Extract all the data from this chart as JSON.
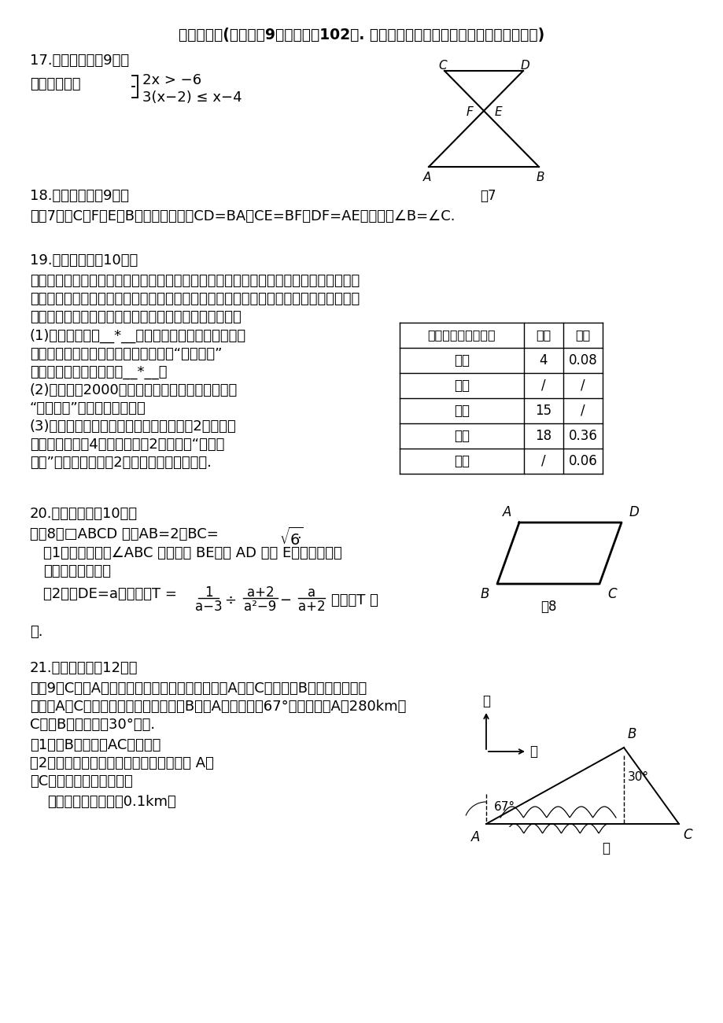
{
  "bg_color": "#ffffff",
  "title": "三、解答题(本大题兲9小题，满分102分. 解答应写出文字说明、证明过程或演算步骤)",
  "q17_title": "17.（本小题满劙9分）",
  "q17_text": "解不等式组：",
  "q18_title": "18.（本小题满劙9分）",
  "q18_text": "如图7，点C、F、E、B在一条直线上，CD=BA，CE=BF，DF=AE，求证：∠B=∠C.",
  "q19_title": "19.（本小题满刉10分）",
  "q19_text1": "某校为了解学生对新闻、体育、动画、娱乐、戲曲五类电视节目的喜爱情况，随机选取该",
  "q19_text2": "校部分学生进行调查，要求每名学生从中只选一类最喜爱的电视节目，以下是根据调查结",
  "q19_text3": "果绘制的不完整统计表，根据表中信息，回答下列问题：",
  "q19_sub1": "(1)本次共调查了__*__名学生，若将各类电视节目喜",
  "q19_sub1b": "爱的人数所占比例绘制成扇形统计图则“喜爱动画”",
  "q19_sub1c": "对应扇形的圆心角度数是__*__；",
  "q19_sub2": "(2)该校共有2000名学生，根据调查结果估计该校",
  "q19_sub2b": "“喜爱体育”节目的学生人数；",
  "q19_sub3": "(3)在此次问卷调查中，甲、乙两班分别有2人喜爱新",
  "q19_sub3b": "闻节目，若从这4人中随机抖取2人去参加“新闻小",
  "q19_sub3c": "记者”培训，求抖取的2人来自不同班级的概率.",
  "table_headers": [
    "喜爱的电视节目类型",
    "人数",
    "频率"
  ],
  "table_rows": [
    [
      "新闻",
      "4",
      "0.08"
    ],
    [
      "体育",
      "/",
      "/"
    ],
    [
      "动画",
      "15",
      "/"
    ],
    [
      "娱乐",
      "18",
      "0.36"
    ],
    [
      "戲曲",
      "/",
      "0.06"
    ]
  ],
  "q20_title": "20.（本小题满刉10分）",
  "q21_title": "21.（本小题满刉12分）",
  "q21_text1": "如图9，C地在A地的正东方向，因有大山阔隔，由A地到C地需绕行B地，现计划开凿",
  "q21_text2": "随道使A、C两地直线贯通，经测量得：B地在A地的北偏东67°方向，距离A地280km，",
  "q21_text3": "C地在B地南偏东的30°方向.",
  "q21_sub1": "（1）求B地到直线AC的距离；",
  "q21_sub2": "（2）求随道开通后与随道开通前相比，从 A地",
  "q21_sub2b": "到C地的路程将缩短多少？",
  "q21_note": "（本题结果都精确到0.1km）"
}
